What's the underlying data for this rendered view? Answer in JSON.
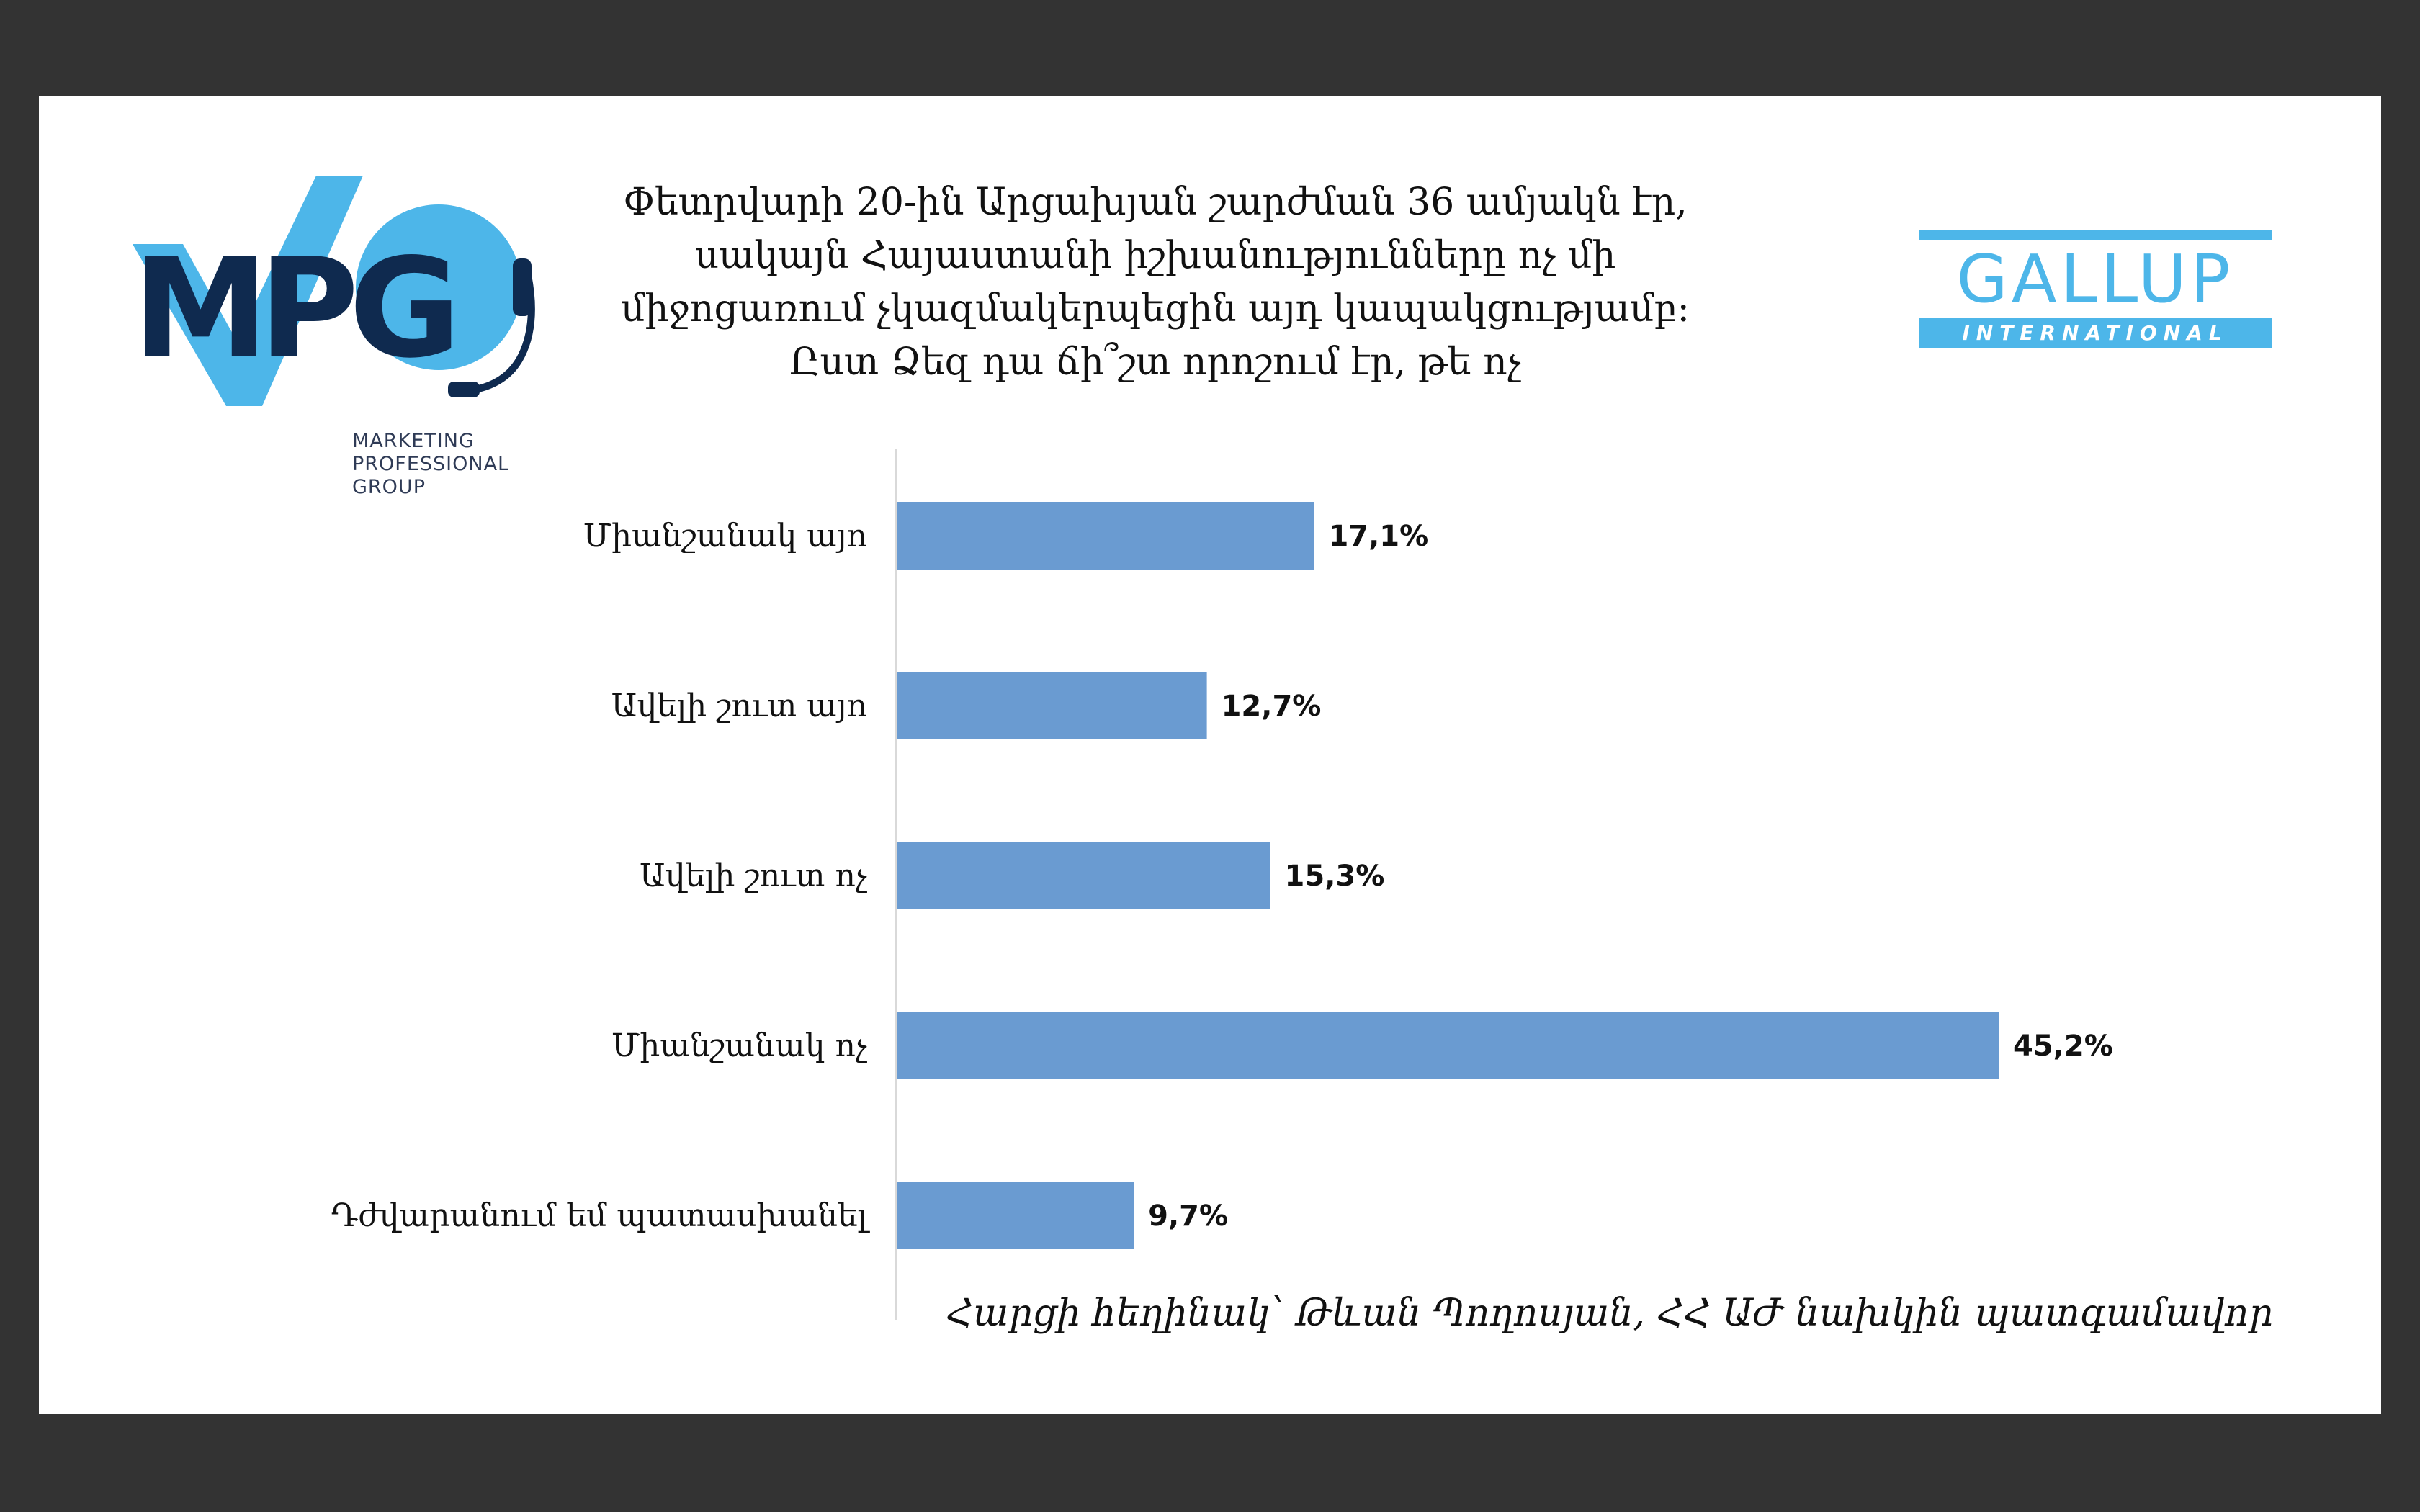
{
  "logos": {
    "mpg": {
      "letters": "MPG",
      "tagline": [
        "MARKETING",
        "PROFESSIONAL",
        "GROUP"
      ],
      "colors": {
        "dark": "#0f2a4f",
        "light": "#4db6e9"
      }
    },
    "gallup": {
      "name": "GALLUP",
      "subtitle": "INTERNATIONAL",
      "color": "#4db6e9"
    }
  },
  "chart_data": {
    "type": "bar",
    "orientation": "horizontal",
    "title_lines": [
      "Փետրվարի 20-ին Արցախյան շարժման 36 ամյակն էր,",
      "սակայն Հայաստանի իշխանությունները ոչ մի",
      "միջոցառում չկազմակերպեցին այդ կապակցությամբ:",
      "Ըստ Ձեզ դա ճի՞շտ որոշում էր, թե ոչ"
    ],
    "categories": [
      "Միանշանակ այո",
      "Ավելի շուտ այո",
      "Ավելի շուտ ոչ",
      "Միանշանակ ոչ",
      "Դժվարանում եմ պատասխանել"
    ],
    "values": [
      17.1,
      12.7,
      15.3,
      45.2,
      9.7
    ],
    "value_labels": [
      "17,1%",
      "12,7%",
      "15,3%",
      "45,2%",
      "9,7%"
    ],
    "unit": "%",
    "xlim": [
      0,
      50
    ],
    "grid": false,
    "legend": "none",
    "bar_color": "#6a9bd1",
    "axis_color": "#d9d9d9"
  },
  "source": "Հարցի հեղինակ՝ Թևան Պողոսյան, ՀՀ ԱԺ նախկին պատգամավոր"
}
